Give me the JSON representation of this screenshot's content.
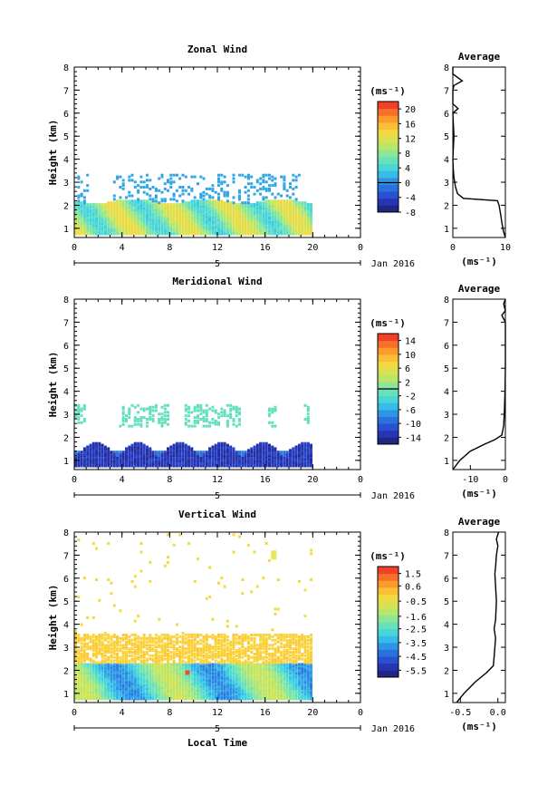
{
  "chart_data": [
    {
      "type": "heatmap",
      "title": "Zonal Wind",
      "xlabel": "",
      "ylabel": "Height (km)",
      "xlim": [
        0,
        24
      ],
      "ylim": [
        0.6,
        8
      ],
      "xticks": [
        "0",
        "4",
        "8",
        "12",
        "16",
        "20",
        "0"
      ],
      "yticks": [
        "1",
        "2",
        "3",
        "4",
        "5",
        "6",
        "7",
        "8"
      ],
      "date_label": "Jan 2016",
      "day_label": "5",
      "colorbar": {
        "unit": "(ms⁻¹)",
        "ticks": [
          "20",
          "16",
          "12",
          "8",
          "4",
          "0",
          "-4",
          "-8"
        ],
        "min": -8,
        "max": 22,
        "marker": 0
      },
      "data_coverage": {
        "dense_top_km": 2.1,
        "scatter_top_km": 3.3,
        "time_end_h": 19.8
      },
      "profile": {
        "title": "Average",
        "xlabel": "(ms⁻¹)",
        "xlim": [
          0,
          10
        ],
        "xticks": [
          "0",
          "10"
        ],
        "x": [
          10,
          9.6,
          9.3,
          9.1,
          8.8,
          8.5,
          2.0,
          0.9,
          0.5,
          0.2,
          0.1,
          0.0,
          0.2,
          0.0,
          1.0,
          0.0,
          0.0,
          0.2,
          1.8,
          0.0,
          0.0
        ],
        "y": [
          0.6,
          0.9,
          1.3,
          1.6,
          2.0,
          2.2,
          2.3,
          2.5,
          2.8,
          3.2,
          3.5,
          4.0,
          5.0,
          6.0,
          6.2,
          6.4,
          7.0,
          7.2,
          7.4,
          7.7,
          8.0
        ]
      }
    },
    {
      "type": "heatmap",
      "title": "Meridional Wind",
      "xlabel": "",
      "ylabel": "Height (km)",
      "xlim": [
        0,
        24
      ],
      "ylim": [
        0.6,
        8
      ],
      "xticks": [
        "0",
        "4",
        "8",
        "12",
        "16",
        "20",
        "0"
      ],
      "yticks": [
        "1",
        "2",
        "3",
        "4",
        "5",
        "6",
        "7",
        "8"
      ],
      "date_label": "Jan 2016",
      "day_label": "5",
      "colorbar": {
        "unit": "(ms⁻¹)",
        "ticks": [
          "14",
          "10",
          "6",
          "2",
          "-2",
          "-6",
          "-10",
          "-14"
        ],
        "min": -16,
        "max": 16,
        "marker": 0
      },
      "data_coverage": {
        "dense_top_km": 1.6,
        "scatter_top_km": 3.4,
        "time_end_h": 19.8
      },
      "profile": {
        "title": "Average",
        "xlabel": "(ms⁻¹)",
        "xlim": [
          -15,
          0
        ],
        "xticks": [
          "-10",
          "0"
        ],
        "x": [
          -15,
          -13,
          -10,
          -6,
          -3,
          -1,
          -0.5,
          -0.3,
          -0.1,
          0.0,
          0.0,
          0.0,
          -1.0,
          0.0,
          -0.5,
          0.0
        ],
        "y": [
          0.6,
          1.0,
          1.4,
          1.7,
          1.9,
          2.1,
          2.5,
          3.0,
          4.0,
          5.0,
          6.0,
          7.0,
          7.3,
          7.5,
          7.8,
          8.0
        ]
      }
    },
    {
      "type": "heatmap",
      "title": "Vertical Wind",
      "xlabel": "Local Time",
      "ylabel": "Height (km)",
      "xlim": [
        0,
        24
      ],
      "ylim": [
        0.6,
        8
      ],
      "xticks": [
        "0",
        "4",
        "8",
        "12",
        "16",
        "20",
        "0"
      ],
      "yticks": [
        "1",
        "2",
        "3",
        "4",
        "5",
        "6",
        "7",
        "8"
      ],
      "date_label": "Jan 2016",
      "day_label": "5",
      "colorbar": {
        "unit": "(ms⁻¹)",
        "ticks": [
          "1.5",
          "0.6",
          "-0.5",
          "-1.6",
          "-2.5",
          "-3.5",
          "-4.5",
          "-5.5"
        ],
        "min": -6,
        "max": 2
      },
      "data_coverage": {
        "dense_top_km": 3.5,
        "scatter_top_km": 8.0,
        "time_end_h": 19.8
      },
      "profile": {
        "title": "Average",
        "xlabel": "(ms⁻¹)",
        "xlim": [
          -0.6,
          0.1
        ],
        "xticks": [
          "-0.5",
          "0.0"
        ],
        "x": [
          -0.55,
          -0.45,
          -0.3,
          -0.15,
          -0.06,
          -0.05,
          -0.04,
          -0.03,
          -0.05,
          -0.03,
          -0.02,
          -0.04,
          -0.03,
          -0.02,
          0.0,
          -0.02,
          0.0,
          0.01
        ],
        "y": [
          0.6,
          1.0,
          1.5,
          1.9,
          2.2,
          2.6,
          3.0,
          3.4,
          3.8,
          4.2,
          5.0,
          6.2,
          6.5,
          7.0,
          7.4,
          7.7,
          7.9,
          8.0
        ]
      }
    }
  ]
}
